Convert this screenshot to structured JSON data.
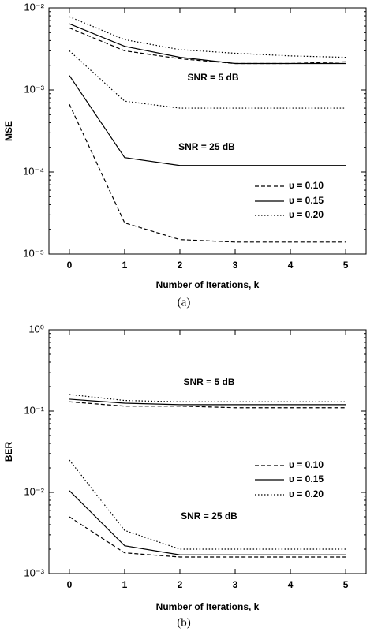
{
  "chart_data": [
    {
      "type": "line",
      "caption": "(a)",
      "ylabel": "MSE",
      "xlabel": "Number of Iterations, k",
      "log_y": true,
      "x": [
        0,
        1,
        2,
        3,
        4,
        5
      ],
      "xlim": [
        -0.37,
        5.37
      ],
      "xticks": [
        0,
        1,
        2,
        3,
        4,
        5
      ],
      "ylim": [
        1e-05,
        0.01
      ],
      "yticks": [
        {
          "value": 1e-05,
          "label": "10⁻⁵"
        },
        {
          "value": 0.0001,
          "label": "10⁻⁴"
        },
        {
          "value": 0.001,
          "label": "10⁻³"
        },
        {
          "value": 0.01,
          "label": "10⁻²"
        }
      ],
      "legend": [
        {
          "name": "υ = 0.10",
          "dash": "5,3"
        },
        {
          "name": "υ = 0.15",
          "dash": "none"
        },
        {
          "name": "υ = 0.20",
          "dash": "1.5,2.5"
        }
      ],
      "groups": [
        {
          "label": "SNR = 5 dB",
          "series": [
            {
              "values": [
                0.0057,
                0.003,
                0.0024,
                0.0021,
                0.0021,
                0.0022
              ]
            },
            {
              "values": [
                0.0064,
                0.0034,
                0.0025,
                0.0021,
                0.0021,
                0.0021
              ]
            },
            {
              "values": [
                0.0078,
                0.0041,
                0.0031,
                0.0028,
                0.0026,
                0.0025
              ]
            }
          ]
        },
        {
          "label": "SNR = 25 dB",
          "series": [
            {
              "values": [
                0.00067,
                2.4e-05,
                1.5e-05,
                1.4e-05,
                1.4e-05,
                1.4e-05
              ]
            },
            {
              "values": [
                0.0015,
                0.00015,
                0.00012,
                0.00012,
                0.00012,
                0.00012
              ]
            },
            {
              "values": [
                0.003,
                0.00073,
                0.0006,
                0.0006,
                0.0006,
                0.0006
              ]
            }
          ]
        }
      ]
    },
    {
      "type": "line",
      "caption": "(b)",
      "ylabel": "BER",
      "xlabel": "Number of Iterations, k",
      "log_y": true,
      "x": [
        0,
        1,
        2,
        3,
        4,
        5
      ],
      "xlim": [
        -0.37,
        5.37
      ],
      "xticks": [
        0,
        1,
        2,
        3,
        4,
        5
      ],
      "ylim": [
        0.001,
        1
      ],
      "yticks": [
        {
          "value": 0.001,
          "label": "10⁻³"
        },
        {
          "value": 0.01,
          "label": "10⁻²"
        },
        {
          "value": 0.1,
          "label": "10⁻¹"
        },
        {
          "value": 1,
          "label": "10⁰"
        }
      ],
      "legend": [
        {
          "name": "υ = 0.10",
          "dash": "5,3"
        },
        {
          "name": "υ = 0.15",
          "dash": "none"
        },
        {
          "name": "υ = 0.20",
          "dash": "1.5,2.5"
        }
      ],
      "groups": [
        {
          "label": "SNR = 5 dB",
          "series": [
            {
              "values": [
                0.13,
                0.115,
                0.115,
                0.11,
                0.11,
                0.11
              ]
            },
            {
              "values": [
                0.14,
                0.125,
                0.12,
                0.12,
                0.12,
                0.12
              ]
            },
            {
              "values": [
                0.16,
                0.135,
                0.13,
                0.13,
                0.13,
                0.13
              ]
            }
          ]
        },
        {
          "label": "SNR = 25 dB",
          "series": [
            {
              "values": [
                0.005,
                0.0018,
                0.0016,
                0.0016,
                0.0016,
                0.0016
              ]
            },
            {
              "values": [
                0.0105,
                0.0022,
                0.0017,
                0.0017,
                0.0017,
                0.0017
              ]
            },
            {
              "values": [
                0.025,
                0.0034,
                0.002,
                0.002,
                0.002,
                0.002
              ]
            }
          ]
        }
      ]
    }
  ]
}
